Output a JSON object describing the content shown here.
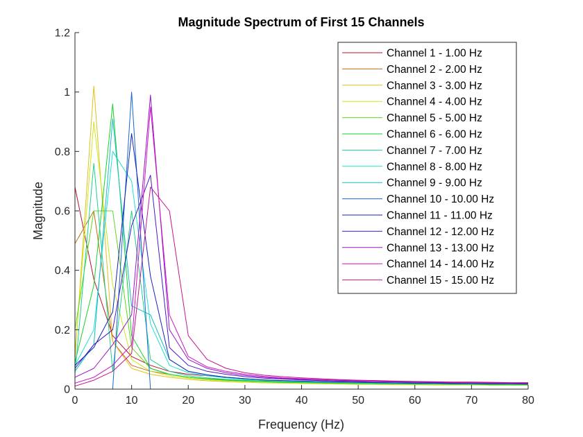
{
  "chart_data": {
    "type": "line",
    "title": "Magnitude Spectrum of First 15 Channels",
    "xlabel": "Frequency (Hz)",
    "ylabel": "Magnitude",
    "xlim": [
      0,
      80
    ],
    "ylim": [
      0,
      1.2
    ],
    "xticks": [
      "0",
      "10",
      "20",
      "30",
      "40",
      "50",
      "60",
      "70",
      "80"
    ],
    "yticks": [
      "0",
      "0.2",
      "0.4",
      "0.6",
      "0.8",
      "1",
      "1.2"
    ],
    "grid": false,
    "legend_position": "top-right",
    "x": [
      0,
      3.33,
      6.67,
      10,
      13.33,
      16.67,
      20,
      23.33,
      26.67,
      30,
      33.33,
      36.67,
      40,
      43.33,
      46.67,
      50,
      53.33,
      56.67,
      60,
      63.33,
      66.67,
      70,
      73.33,
      76.67,
      80
    ],
    "series": [
      {
        "name": "Channel 1 - 1.00 Hz",
        "color": "#b5102a",
        "values": [
          0.68,
          0.37,
          0.18,
          0.11,
          0.08,
          0.06,
          0.05,
          0.045,
          0.04,
          0.035,
          0.03,
          0.028,
          0.026,
          0.025,
          0.024,
          0.023,
          0.022,
          0.021,
          0.02,
          0.02,
          0.019,
          0.018,
          0.018,
          0.017,
          0.017
        ]
      },
      {
        "name": "Channel 2 - 2.00 Hz",
        "color": "#c46a10",
        "values": [
          0.49,
          0.6,
          0.16,
          0.08,
          0.06,
          0.05,
          0.04,
          0.035,
          0.032,
          0.029,
          0.027,
          0.025,
          0.024,
          0.023,
          0.022,
          0.021,
          0.02,
          0.019,
          0.019,
          0.018,
          0.018,
          0.017,
          0.017,
          0.016,
          0.016
        ]
      },
      {
        "name": "Channel 3 - 3.00 Hz",
        "color": "#e0c01a",
        "values": [
          0.1,
          1.02,
          0.16,
          0.07,
          0.05,
          0.04,
          0.033,
          0.028,
          0.025,
          0.023,
          0.021,
          0.02,
          0.019,
          0.018,
          0.017,
          0.016,
          0.016,
          0.015,
          0.015,
          0.014,
          0.014,
          0.014,
          0.013,
          0.013,
          0.013
        ]
      },
      {
        "name": "Channel 4 - 4.00 Hz",
        "color": "#c8e818",
        "values": [
          0.12,
          0.9,
          0.35,
          0.1,
          0.06,
          0.045,
          0.037,
          0.031,
          0.027,
          0.024,
          0.022,
          0.021,
          0.02,
          0.019,
          0.018,
          0.017,
          0.016,
          0.016,
          0.015,
          0.015,
          0.014,
          0.014,
          0.014,
          0.013,
          0.013
        ]
      },
      {
        "name": "Channel 5 - 5.00 Hz",
        "color": "#5ed81a",
        "values": [
          0.2,
          0.6,
          0.6,
          0.14,
          0.07,
          0.05,
          0.04,
          0.034,
          0.03,
          0.027,
          0.025,
          0.023,
          0.022,
          0.021,
          0.02,
          0.019,
          0.018,
          0.018,
          0.017,
          0.017,
          0.016,
          0.016,
          0.015,
          0.015,
          0.015
        ]
      },
      {
        "name": "Channel 6 - 6.00 Hz",
        "color": "#14d428",
        "values": [
          0.09,
          0.35,
          0.96,
          0.18,
          0.07,
          0.05,
          0.04,
          0.034,
          0.03,
          0.027,
          0.025,
          0.023,
          0.022,
          0.021,
          0.02,
          0.019,
          0.018,
          0.018,
          0.017,
          0.017,
          0.016,
          0.016,
          0.015,
          0.015,
          0.015
        ]
      },
      {
        "name": "Channel 7 - 7.00 Hz",
        "color": "#1ad28a",
        "values": [
          0.05,
          0.76,
          0.06,
          0.6,
          0.1,
          0.06,
          0.045,
          0.038,
          0.033,
          0.03,
          0.027,
          0.025,
          0.024,
          0.023,
          0.022,
          0.021,
          0.02,
          0.019,
          0.019,
          0.018,
          0.018,
          0.017,
          0.017,
          0.016,
          0.016
        ]
      },
      {
        "name": "Channel 8 - 8.00 Hz",
        "color": "#1ee0d2",
        "values": [
          0.08,
          0.2,
          0.8,
          0.7,
          0.22,
          0.08,
          0.055,
          0.045,
          0.038,
          0.033,
          0.03,
          0.028,
          0.026,
          0.024,
          0.023,
          0.022,
          0.021,
          0.02,
          0.02,
          0.019,
          0.019,
          0.018,
          0.018,
          0.017,
          0.017
        ]
      },
      {
        "name": "Channel 9 - 9.00 Hz",
        "color": "#12bcc8",
        "values": [
          0.06,
          0.15,
          0.91,
          0.28,
          0.25,
          0.1,
          0.06,
          0.048,
          0.04,
          0.035,
          0.031,
          0.029,
          0.027,
          0.025,
          0.024,
          0.023,
          0.022,
          0.021,
          0.02,
          0.02,
          0.019,
          0.019,
          0.018,
          0.018,
          0.017
        ]
      },
      {
        "name": "Channel 10 - 10.00 Hz",
        "color": "#1466d4",
        "values": [
          0,
          0,
          0,
          1.0,
          0,
          0,
          0,
          0,
          0,
          0,
          0,
          0,
          0,
          0,
          0,
          0,
          0,
          0,
          0,
          0,
          0,
          0,
          0,
          0,
          0
        ]
      },
      {
        "name": "Channel 11 - 11.00 Hz",
        "color": "#1420b8",
        "values": [
          0.08,
          0.14,
          0.26,
          0.86,
          0.38,
          0.1,
          0.06,
          0.048,
          0.04,
          0.035,
          0.031,
          0.029,
          0.027,
          0.025,
          0.024,
          0.023,
          0.022,
          0.021,
          0.02,
          0.02,
          0.019,
          0.019,
          0.018,
          0.018,
          0.017
        ]
      },
      {
        "name": "Channel 12 - 12.00 Hz",
        "color": "#4418c8",
        "values": [
          0.07,
          0.15,
          0.2,
          0.55,
          0.72,
          0.14,
          0.08,
          0.06,
          0.05,
          0.042,
          0.037,
          0.034,
          0.031,
          0.029,
          0.027,
          0.026,
          0.025,
          0.024,
          0.023,
          0.022,
          0.021,
          0.021,
          0.02,
          0.019,
          0.019
        ]
      },
      {
        "name": "Channel 13 - 13.00 Hz",
        "color": "#9a14c8",
        "values": [
          0.04,
          0.07,
          0.15,
          0.25,
          0.99,
          0.2,
          0.1,
          0.07,
          0.055,
          0.046,
          0.04,
          0.036,
          0.033,
          0.031,
          0.029,
          0.027,
          0.026,
          0.025,
          0.024,
          0.023,
          0.022,
          0.021,
          0.021,
          0.02,
          0.02
        ]
      },
      {
        "name": "Channel 14 - 14.00 Hz",
        "color": "#c814c2",
        "values": [
          0.02,
          0.04,
          0.08,
          0.15,
          0.95,
          0.25,
          0.11,
          0.075,
          0.06,
          0.05,
          0.043,
          0.038,
          0.035,
          0.032,
          0.03,
          0.028,
          0.027,
          0.026,
          0.025,
          0.024,
          0.023,
          0.022,
          0.022,
          0.021,
          0.021
        ]
      },
      {
        "name": "Channel 15 - 15.00 Hz",
        "color": "#c4148a",
        "values": [
          0.01,
          0.03,
          0.06,
          0.12,
          0.68,
          0.6,
          0.18,
          0.1,
          0.07,
          0.055,
          0.047,
          0.042,
          0.038,
          0.035,
          0.032,
          0.03,
          0.029,
          0.027,
          0.026,
          0.025,
          0.024,
          0.024,
          0.023,
          0.022,
          0.022
        ]
      }
    ]
  }
}
